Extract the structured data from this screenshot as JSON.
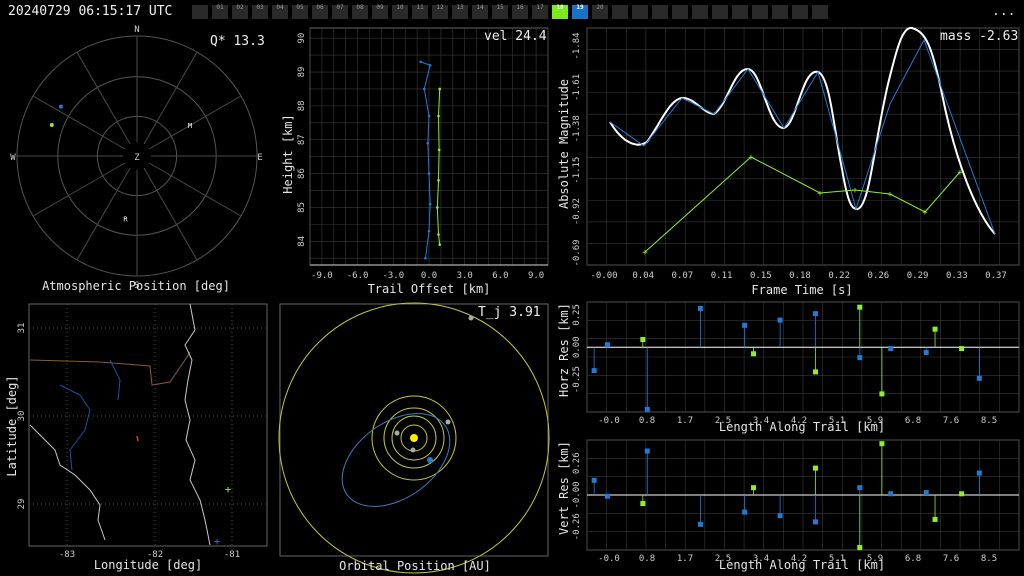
{
  "header": {
    "timestamp": "20240729 06:15:17 UTC",
    "menu": "...",
    "frames": [
      {
        "label": "",
        "state": "off"
      },
      {
        "label": "01",
        "state": "off"
      },
      {
        "label": "02",
        "state": "off"
      },
      {
        "label": "03",
        "state": "off"
      },
      {
        "label": "04",
        "state": "off"
      },
      {
        "label": "05",
        "state": "off"
      },
      {
        "label": "06",
        "state": "off"
      },
      {
        "label": "07",
        "state": "off"
      },
      {
        "label": "08",
        "state": "off"
      },
      {
        "label": "09",
        "state": "off"
      },
      {
        "label": "10",
        "state": "off"
      },
      {
        "label": "11",
        "state": "off"
      },
      {
        "label": "12",
        "state": "off"
      },
      {
        "label": "13",
        "state": "off"
      },
      {
        "label": "14",
        "state": "off"
      },
      {
        "label": "15",
        "state": "off"
      },
      {
        "label": "16",
        "state": "off"
      },
      {
        "label": "17",
        "state": "off"
      },
      {
        "label": "18",
        "state": "green"
      },
      {
        "label": "19",
        "state": "blue"
      },
      {
        "label": "20",
        "state": "off"
      },
      {
        "label": "",
        "state": "off"
      },
      {
        "label": "",
        "state": "off"
      },
      {
        "label": "",
        "state": "off"
      },
      {
        "label": "",
        "state": "off"
      },
      {
        "label": "",
        "state": "off"
      },
      {
        "label": "",
        "state": "off"
      },
      {
        "label": "",
        "state": "off"
      },
      {
        "label": "",
        "state": "off"
      },
      {
        "label": "",
        "state": "off"
      },
      {
        "label": "",
        "state": "off"
      },
      {
        "label": "",
        "state": "off"
      }
    ]
  },
  "colors": {
    "green": "#8fef2a",
    "blue": "#1f7bd6",
    "grid": "#3a3a3a",
    "white": "#ffffff",
    "orbit": "#c7c73a"
  },
  "atmospheric": {
    "title": "Atmospheric Position [deg]",
    "stat": "Q* 13.3",
    "compass": [
      "N",
      "E",
      "S",
      "W"
    ],
    "center": "Z",
    "markers": [
      {
        "label": "M",
        "az": 62,
        "zen": 45
      },
      {
        "label": "R",
        "az": 190,
        "zen": 50
      },
      {
        "label": "",
        "az": 303,
        "zen": 68,
        "color": "blue"
      },
      {
        "label": "",
        "az": 290,
        "zen": 68,
        "color": "green"
      }
    ]
  },
  "trail": {
    "title": "Trail Offset [km]",
    "ylabel": "Height [km]",
    "stat": "vel 24.4",
    "xticks": [
      "-9.0",
      "-6.0",
      "-3.0",
      "0.0",
      "3.0",
      "6.0",
      "9.0"
    ],
    "yticks": [
      "84",
      "85",
      "86",
      "87",
      "88",
      "89",
      "90"
    ],
    "green": [
      [
        0.9,
        88.5
      ],
      [
        0.8,
        87.7
      ],
      [
        0.85,
        86.7
      ],
      [
        0.8,
        85.8
      ],
      [
        0.7,
        85.0
      ],
      [
        0.8,
        84.2
      ],
      [
        0.9,
        83.9
      ]
    ],
    "blue": [
      [
        -0.7,
        89.3
      ],
      [
        0.1,
        89.2
      ],
      [
        -0.4,
        88.5
      ],
      [
        0.0,
        87.7
      ],
      [
        -0.1,
        86.9
      ],
      [
        0.0,
        86.0
      ],
      [
        0.1,
        85.1
      ],
      [
        0.0,
        84.3
      ],
      [
        -0.3,
        83.5
      ]
    ]
  },
  "magnitude": {
    "xlabel": "Frame Time [s]",
    "ylabel": "Absolute Magnitude",
    "stat": "mass -2.63",
    "xticks": [
      "-0.00",
      "0.04",
      "0.07",
      "0.11",
      "0.15",
      "0.18",
      "0.22",
      "0.26",
      "0.29",
      "0.33",
      "0.37"
    ],
    "yticks": [
      "-1.84",
      "-1.61",
      "-1.38",
      "-1.15",
      "-0.92",
      "-0.69"
    ]
  },
  "map": {
    "xlabel": "Longitude [deg]",
    "ylabel": "Latitude [deg]",
    "xticks": [
      "-83",
      "-82",
      "-81"
    ],
    "yticks": [
      "31",
      "30",
      "29"
    ]
  },
  "orbit": {
    "title": "Orbital Position [AU]",
    "stat": "T_j 3.91"
  },
  "horz": {
    "xlabel": "Length Along Trail [km]",
    "ylabel": "Horz Res [km]",
    "xticks": [
      "-0.0",
      "0.8",
      "1.7",
      "2.5",
      "3.4",
      "4.2",
      "5.1",
      "5.9",
      "6.8",
      "7.6",
      "8.5"
    ],
    "yticks": [
      "0.25",
      "0.00",
      "-0.25"
    ],
    "ylim": [
      -0.5,
      0.35
    ],
    "blue": [
      [
        -0.2,
        -0.18
      ],
      [
        0.1,
        0.02
      ],
      [
        1.0,
        -0.48
      ],
      [
        2.2,
        0.3
      ],
      [
        3.2,
        0.17
      ],
      [
        4.0,
        0.21
      ],
      [
        4.8,
        0.26
      ],
      [
        5.8,
        -0.08
      ],
      [
        6.5,
        -0.01
      ],
      [
        7.3,
        -0.04
      ],
      [
        8.5,
        -0.24
      ]
    ],
    "green": [
      [
        0.9,
        0.06
      ],
      [
        3.4,
        -0.05
      ],
      [
        4.8,
        -0.19
      ],
      [
        5.8,
        0.31
      ],
      [
        6.3,
        -0.36
      ],
      [
        7.5,
        0.14
      ],
      [
        8.1,
        -0.01
      ]
    ]
  },
  "vert": {
    "xlabel": "Length Along Trail [km]",
    "ylabel": "Vert Res [km]",
    "xticks": [
      "-0.0",
      "0.8",
      "1.7",
      "2.5",
      "3.4",
      "4.2",
      "5.1",
      "5.9",
      "6.8",
      "7.6",
      "8.5"
    ],
    "yticks": [
      "0.26",
      "-0.00",
      "-0.26"
    ],
    "ylim": [
      -0.45,
      0.45
    ],
    "blue": [
      [
        -0.2,
        0.12
      ],
      [
        0.1,
        -0.01
      ],
      [
        1.0,
        0.36
      ],
      [
        2.2,
        -0.24
      ],
      [
        3.2,
        -0.14
      ],
      [
        4.0,
        -0.17
      ],
      [
        4.8,
        -0.22
      ],
      [
        5.8,
        0.06
      ],
      [
        6.5,
        0.01
      ],
      [
        7.3,
        0.02
      ],
      [
        8.5,
        0.18
      ]
    ],
    "green": [
      [
        0.9,
        -0.07
      ],
      [
        3.4,
        0.06
      ],
      [
        4.8,
        0.22
      ],
      [
        5.8,
        -0.43
      ],
      [
        6.3,
        0.42
      ],
      [
        7.5,
        -0.2
      ],
      [
        8.1,
        0.01
      ]
    ]
  }
}
